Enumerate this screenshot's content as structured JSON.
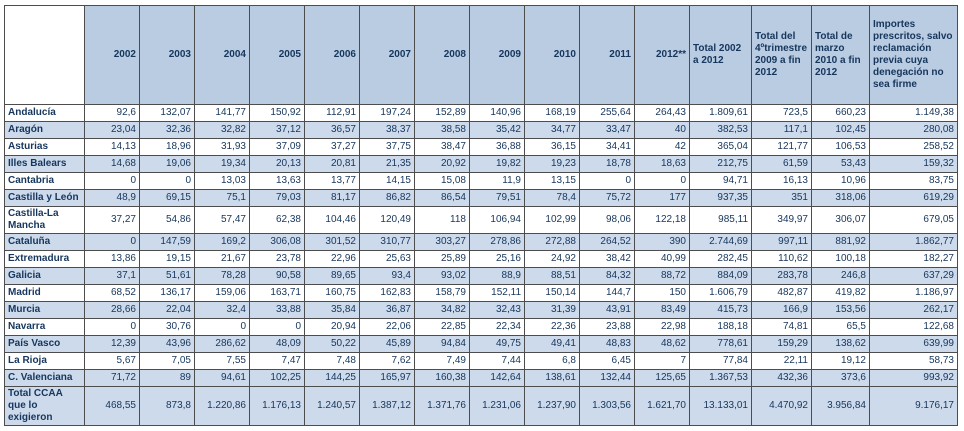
{
  "table": {
    "corner_label": "",
    "year_columns": [
      "2002",
      "2003",
      "2004",
      "2005",
      "2006",
      "2007",
      "2008",
      "2009",
      "2010",
      "2011",
      "2012**"
    ],
    "total_columns": [
      "Total 2002 a 2012",
      "Total del 4ºtrimestre 2009 a fin 2012",
      "Total de marzo 2010 a fin 2012",
      "Importes prescritos, salvo reclamación previa cuya denegación no sea firme"
    ],
    "rows": [
      {
        "label": "Andalucía",
        "values": [
          "92,6",
          "132,07",
          "141,77",
          "150,92",
          "112,91",
          "197,24",
          "152,89",
          "140,96",
          "168,19",
          "255,64",
          "264,43",
          "1.809,61",
          "723,5",
          "660,23",
          "1.149,38"
        ]
      },
      {
        "label": "Aragón",
        "values": [
          "23,04",
          "32,36",
          "32,82",
          "37,12",
          "36,57",
          "38,37",
          "38,58",
          "35,42",
          "34,77",
          "33,47",
          "40",
          "382,53",
          "117,1",
          "102,45",
          "280,08"
        ]
      },
      {
        "label": "Asturias",
        "values": [
          "14,13",
          "18,96",
          "31,93",
          "37,09",
          "37,27",
          "37,75",
          "38,47",
          "36,88",
          "36,15",
          "34,41",
          "42",
          "365,04",
          "121,77",
          "106,53",
          "258,52"
        ]
      },
      {
        "label": "Illes Balears",
        "values": [
          "14,68",
          "19,06",
          "19,34",
          "20,13",
          "20,81",
          "21,35",
          "20,92",
          "19,82",
          "19,23",
          "18,78",
          "18,63",
          "212,75",
          "61,59",
          "53,43",
          "159,32"
        ]
      },
      {
        "label": "Cantabria",
        "values": [
          "0",
          "0",
          "13,03",
          "13,63",
          "13,77",
          "14,15",
          "15,08",
          "11,9",
          "13,15",
          "0",
          "0",
          "94,71",
          "16,13",
          "10,96",
          "83,75"
        ]
      },
      {
        "label": "Castilla y León",
        "values": [
          "48,9",
          "69,15",
          "75,1",
          "79,03",
          "81,17",
          "86,82",
          "86,54",
          "79,51",
          "78,4",
          "75,72",
          "177",
          "937,35",
          "351",
          "318,06",
          "619,29"
        ]
      },
      {
        "label": "Castilla-La Mancha",
        "values": [
          "37,27",
          "54,86",
          "57,47",
          "62,38",
          "104,46",
          "120,49",
          "118",
          "106,94",
          "102,99",
          "98,06",
          "122,18",
          "985,11",
          "349,97",
          "306,07",
          "679,05"
        ]
      },
      {
        "label": "Cataluña",
        "values": [
          "0",
          "147,59",
          "169,2",
          "306,08",
          "301,52",
          "310,77",
          "303,27",
          "278,86",
          "272,88",
          "264,52",
          "390",
          "2.744,69",
          "997,11",
          "881,92",
          "1.862,77"
        ]
      },
      {
        "label": "Extremadura",
        "values": [
          "13,86",
          "19,15",
          "21,67",
          "23,78",
          "22,96",
          "25,63",
          "25,89",
          "25,16",
          "24,92",
          "38,42",
          "40,99",
          "282,45",
          "110,62",
          "100,18",
          "182,27"
        ]
      },
      {
        "label": "Galicia",
        "values": [
          "37,1",
          "51,61",
          "78,28",
          "90,58",
          "89,65",
          "93,4",
          "93,02",
          "88,9",
          "88,51",
          "84,32",
          "88,72",
          "884,09",
          "283,78",
          "246,8",
          "637,29"
        ]
      },
      {
        "label": "Madrid",
        "values": [
          "68,52",
          "136,17",
          "159,06",
          "163,71",
          "160,75",
          "162,83",
          "158,79",
          "152,11",
          "150,14",
          "144,7",
          "150",
          "1.606,79",
          "482,87",
          "419,82",
          "1.186,97"
        ]
      },
      {
        "label": "Murcia",
        "values": [
          "28,66",
          "22,04",
          "32,4",
          "33,88",
          "35,84",
          "36,87",
          "34,82",
          "32,43",
          "31,39",
          "43,91",
          "83,49",
          "415,73",
          "166,9",
          "153,56",
          "262,17"
        ]
      },
      {
        "label": "Navarra",
        "values": [
          "0",
          "30,76",
          "0",
          "0",
          "20,94",
          "22,06",
          "22,85",
          "22,34",
          "22,36",
          "23,88",
          "22,98",
          "188,18",
          "74,81",
          "65,5",
          "122,68"
        ]
      },
      {
        "label": "País Vasco",
        "values": [
          "12,39",
          "43,96",
          "286,62",
          "48,09",
          "50,22",
          "45,89",
          "94,84",
          "49,75",
          "49,41",
          "48,83",
          "48,62",
          "778,61",
          "159,29",
          "138,62",
          "639,99"
        ]
      },
      {
        "label": "La Rioja",
        "values": [
          "5,67",
          "7,05",
          "7,55",
          "7,47",
          "7,48",
          "7,62",
          "7,49",
          "7,44",
          "6,8",
          "6,45",
          "7",
          "77,84",
          "22,11",
          "19,12",
          "58,73"
        ]
      },
      {
        "label": "C. Valenciana",
        "values": [
          "71,72",
          "89",
          "94,61",
          "102,25",
          "144,25",
          "165,97",
          "160,38",
          "142,64",
          "138,61",
          "132,44",
          "125,65",
          "1.367,53",
          "432,36",
          "373,6",
          "993,92"
        ]
      },
      {
        "label": "Total CCAA que lo exigieron",
        "values": [
          "468,55",
          "873,8",
          "1.220,86",
          "1.176,13",
          "1.240,57",
          "1.387,12",
          "1.371,76",
          "1.231,06",
          "1.237,90",
          "1.303,56",
          "1.621,70",
          "13.133,01",
          "4.470,92",
          "3.956,84",
          "9.176,17"
        ]
      }
    ],
    "colors": {
      "header_bg": "#b9cce2",
      "shaded_row_bg": "#ccdaeb",
      "text": "#16365c",
      "border": "#4d4d4d"
    }
  }
}
